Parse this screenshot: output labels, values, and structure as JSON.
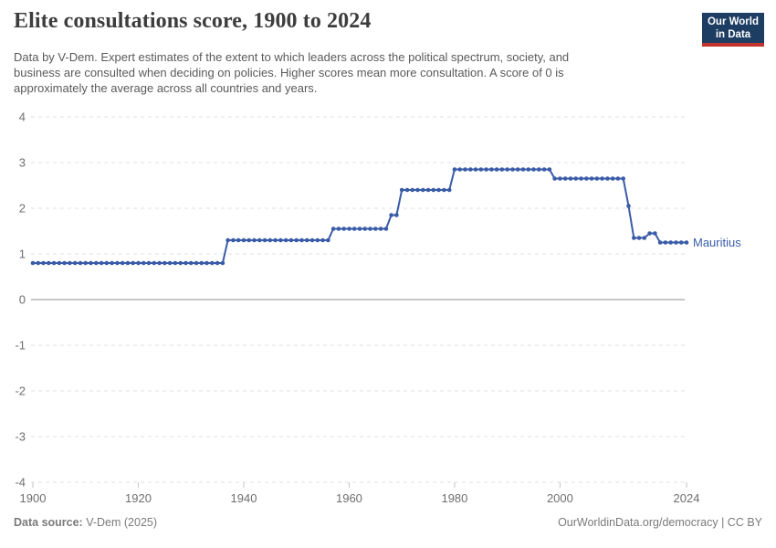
{
  "header": {
    "title": "Elite consultations score, 1900 to 2024",
    "subtitle_lines": [
      "Data by V-Dem. Expert estimates of the extent to which leaders across the political spectrum, society, and",
      "business are consulted when deciding on policies. Higher scores mean more consultation. A score of 0 is",
      "approximately the average across all countries and years."
    ],
    "logo": {
      "line1": "Our World",
      "line2": "in Data"
    }
  },
  "footer": {
    "source_label": "Data source:",
    "source_value": " V-Dem (2025)",
    "credit": "OurWorldinData.org/democracy | CC BY"
  },
  "colors": {
    "series": "#3a5ca8",
    "grid": "#e0e0e0",
    "zero_line": "#8f8f8f",
    "axis_tick": "#c5c5c5",
    "axis_text": "#6e6e6e",
    "logo_bg": "#1d3d63",
    "logo_bar": "#c2352c"
  },
  "chart_data": {
    "type": "line",
    "title": "Elite consultations score, 1900 to 2024",
    "xlabel": "",
    "ylabel": "",
    "x": {
      "min": 1900,
      "max": 2024,
      "ticks": [
        1900,
        1920,
        1940,
        1960,
        1980,
        2000,
        2024
      ]
    },
    "y": {
      "min": -4,
      "max": 4,
      "ticks": [
        4,
        3,
        2,
        1,
        0,
        -1,
        -2,
        -3,
        -4
      ]
    },
    "grid": "horizontal-dashed",
    "legend": "end-of-line-label",
    "frequency": "annual",
    "series": [
      {
        "name": "Mauritius",
        "color": "#3a5ca8",
        "segments": [
          {
            "from": 1900,
            "to": 1936,
            "value": 0.8
          },
          {
            "from": 1937,
            "to": 1956,
            "value": 1.3
          },
          {
            "from": 1957,
            "to": 1967,
            "value": 1.55
          },
          {
            "from": 1968,
            "to": 1969,
            "value": 1.85
          },
          {
            "from": 1970,
            "to": 1979,
            "value": 2.4
          },
          {
            "from": 1980,
            "to": 1998,
            "value": 2.85
          },
          {
            "from": 1999,
            "to": 2012,
            "value": 2.65
          },
          {
            "from": 2013,
            "to": 2013,
            "value": 2.05
          },
          {
            "from": 2014,
            "to": 2016,
            "value": 1.35
          },
          {
            "from": 2017,
            "to": 2018,
            "value": 1.45
          },
          {
            "from": 2019,
            "to": 2024,
            "value": 1.25
          }
        ]
      }
    ]
  }
}
